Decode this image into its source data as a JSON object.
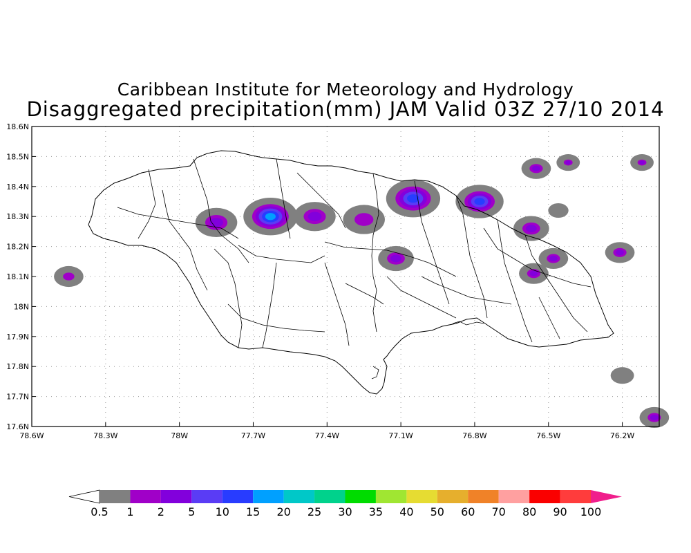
{
  "titles": {
    "line1": "Caribbean Institute for Meteorology and Hydrology",
    "line2": "Disaggregated precipitation(mm) JAM Valid 03Z 27/10 2014"
  },
  "axes": {
    "lon_labels": [
      "78.6W",
      "78.3W",
      "78W",
      "77.7W",
      "77.4W",
      "77.1W",
      "76.8W",
      "76.5W",
      "76.2W"
    ],
    "lat_labels": [
      "18.6N",
      "18.5N",
      "18.4N",
      "18.3N",
      "18.2N",
      "18.1N",
      "18N",
      "17.9N",
      "17.8N",
      "17.7N",
      "17.6N"
    ]
  },
  "colorbar": {
    "labels": [
      "0.5",
      "1",
      "2",
      "5",
      "10",
      "15",
      "20",
      "25",
      "30",
      "35",
      "40",
      "50",
      "60",
      "70",
      "80",
      "90",
      "100"
    ],
    "colors": [
      "#808080",
      "#a000c8",
      "#8200dc",
      "#5a3cf5",
      "#283cff",
      "#00a0ff",
      "#00c8c8",
      "#00d28c",
      "#00dc00",
      "#a0e632",
      "#e6dc32",
      "#e6af2d",
      "#f08228",
      "#ffa0a0",
      "#fa0000",
      "#ff3c3c"
    ],
    "under_color": "#ffffff",
    "over_color": "#f01e8c"
  },
  "precip_cells": [
    {
      "lon": -78.45,
      "lat": 18.1,
      "r": 0.03,
      "max": 1
    },
    {
      "lon": -77.85,
      "lat": 18.28,
      "r": 0.05,
      "max": 2
    },
    {
      "lon": -77.63,
      "lat": 18.3,
      "r": 0.07,
      "max": 15
    },
    {
      "lon": -77.45,
      "lat": 18.3,
      "r": 0.05,
      "max": 2
    },
    {
      "lon": -77.25,
      "lat": 18.29,
      "r": 0.05,
      "max": 1
    },
    {
      "lon": -77.12,
      "lat": 18.16,
      "r": 0.04,
      "max": 2
    },
    {
      "lon": -77.05,
      "lat": 18.36,
      "r": 0.07,
      "max": 10
    },
    {
      "lon": -76.78,
      "lat": 18.35,
      "r": 0.06,
      "max": 10
    },
    {
      "lon": -76.57,
      "lat": 18.26,
      "r": 0.04,
      "max": 2
    },
    {
      "lon": -76.55,
      "lat": 18.46,
      "r": 0.03,
      "max": 2
    },
    {
      "lon": -76.42,
      "lat": 18.48,
      "r": 0.02,
      "max": 2
    },
    {
      "lon": -76.48,
      "lat": 18.16,
      "r": 0.03,
      "max": 2
    },
    {
      "lon": -76.56,
      "lat": 18.11,
      "r": 0.03,
      "max": 2
    },
    {
      "lon": -76.21,
      "lat": 18.18,
      "r": 0.03,
      "max": 2
    },
    {
      "lon": -76.12,
      "lat": 18.48,
      "r": 0.02,
      "max": 2
    },
    {
      "lon": -76.46,
      "lat": 18.32,
      "r": 0.015,
      "max": 0.5
    },
    {
      "lon": -76.2,
      "lat": 17.77,
      "r": 0.02,
      "max": 0.5
    },
    {
      "lon": -76.07,
      "lat": 17.63,
      "r": 0.03,
      "max": 2
    }
  ]
}
